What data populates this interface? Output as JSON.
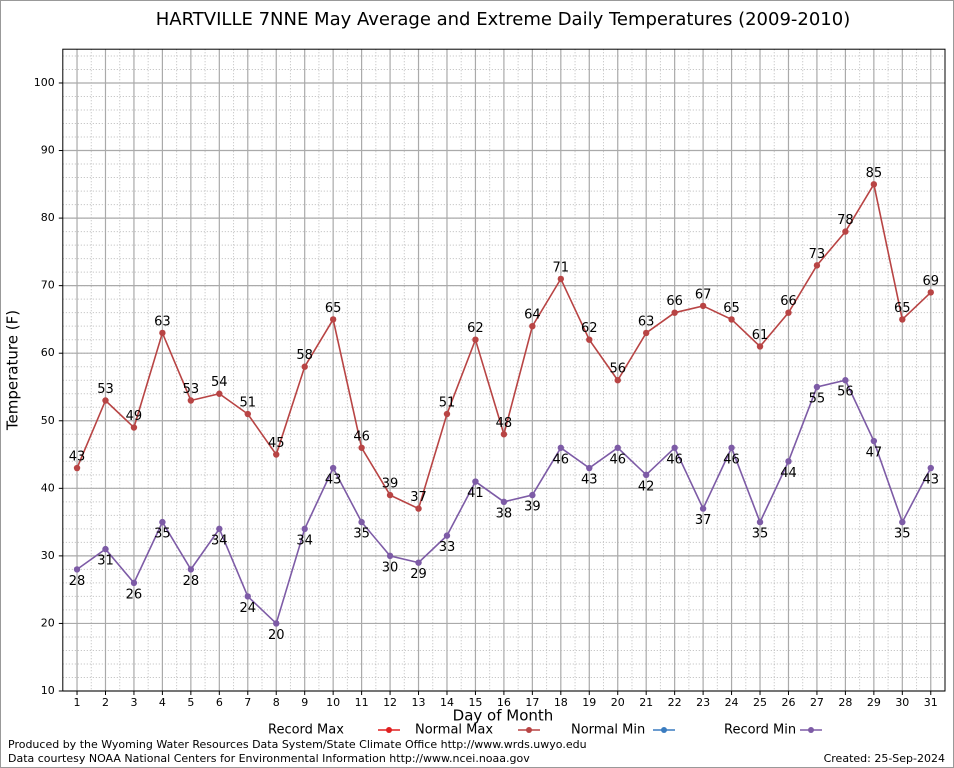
{
  "chart_data": {
    "type": "line",
    "title": "HARTVILLE 7NNE May Average and Extreme Daily Temperatures (2009-2010)",
    "xlabel": "Day of Month",
    "ylabel": "Temperature (F)",
    "x": [
      1,
      2,
      3,
      4,
      5,
      6,
      7,
      8,
      9,
      10,
      11,
      12,
      13,
      14,
      15,
      16,
      17,
      18,
      19,
      20,
      21,
      22,
      23,
      24,
      25,
      26,
      27,
      28,
      29,
      30,
      31
    ],
    "xlim": [
      0.5,
      31.5
    ],
    "ylim": [
      10,
      105
    ],
    "yticks": [
      10,
      20,
      30,
      40,
      50,
      60,
      70,
      80,
      90,
      100
    ],
    "grid": true,
    "series": [
      {
        "name": "Record Max",
        "color": "#e02020",
        "values": [
          null,
          null,
          null,
          null,
          null,
          null,
          null,
          null,
          null,
          null,
          null,
          null,
          null,
          null,
          null,
          null,
          null,
          null,
          null,
          null,
          null,
          null,
          null,
          null,
          null,
          null,
          null,
          null,
          null,
          null,
          null
        ]
      },
      {
        "name": "Normal Max",
        "color": "#b84444",
        "values": [
          43,
          53,
          49,
          63,
          53,
          54,
          51,
          45,
          58,
          65,
          46,
          39,
          37,
          51,
          62,
          48,
          64,
          71,
          62,
          56,
          63,
          66,
          67,
          65,
          61,
          66,
          73,
          78,
          85,
          65,
          69
        ]
      },
      {
        "name": "Normal Min",
        "color": "#3a7cc0",
        "values": [
          null,
          null,
          null,
          null,
          null,
          null,
          null,
          null,
          null,
          null,
          null,
          null,
          null,
          null,
          null,
          null,
          null,
          null,
          null,
          null,
          null,
          null,
          null,
          null,
          null,
          null,
          null,
          null,
          null,
          null,
          null
        ]
      },
      {
        "name": "Record Min",
        "color": "#7d5ba6",
        "values": [
          28,
          31,
          26,
          35,
          28,
          34,
          24,
          20,
          34,
          43,
          35,
          30,
          29,
          33,
          41,
          38,
          39,
          46,
          43,
          46,
          42,
          46,
          37,
          46,
          35,
          44,
          55,
          56,
          47,
          35,
          43
        ]
      }
    ],
    "footer_left": [
      "Produced by the Wyoming Water Resources Data System/State Climate Office http://www.wrds.uwyo.edu",
      "Data courtesy NOAA National Centers for Environmental Information http://www.ncei.noaa.gov"
    ],
    "footer_right": "Created:  25-Sep-2024"
  }
}
